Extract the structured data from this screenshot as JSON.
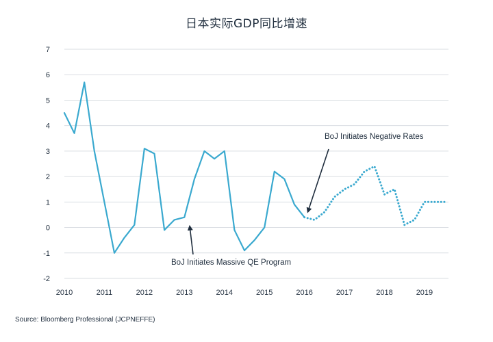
{
  "chart_data": {
    "type": "line",
    "title": "日本实际GDP同比增速",
    "source": "Source: Bloomberg Professional (JCPNEFFE)",
    "xlabel": "",
    "ylabel": "",
    "xlim": [
      2010,
      2019.6
    ],
    "ylim": [
      -2,
      7
    ],
    "yticks": [
      -2,
      -1,
      0,
      1,
      2,
      3,
      4,
      5,
      6,
      7
    ],
    "xticks": [
      2010,
      2011,
      2012,
      2013,
      2014,
      2015,
      2016,
      2017,
      2018,
      2019
    ],
    "grid": true,
    "line_color": "#3aa9cf",
    "series": [
      {
        "style": "solid",
        "x": [
          2010.0,
          2010.25,
          2010.5,
          2010.75,
          2011.0,
          2011.25,
          2011.5,
          2011.75,
          2012.0,
          2012.25,
          2012.5,
          2012.75,
          2013.0,
          2013.25,
          2013.5,
          2013.75,
          2014.0,
          2014.25,
          2014.5,
          2014.75,
          2015.0,
          2015.25,
          2015.5,
          2015.75,
          2016.0
        ],
        "y": [
          4.5,
          3.7,
          5.7,
          3.0,
          1.0,
          -1.0,
          -0.4,
          0.1,
          3.1,
          2.9,
          -0.1,
          0.3,
          0.4,
          1.9,
          3.0,
          2.7,
          3.0,
          -0.1,
          -0.9,
          -0.5,
          0.0,
          2.2,
          1.9,
          0.9,
          0.4
        ]
      },
      {
        "style": "dotted",
        "x": [
          2016.0,
          2016.25,
          2016.5,
          2016.75,
          2017.0,
          2017.25,
          2017.5,
          2017.75,
          2018.0,
          2018.25,
          2018.5,
          2018.75,
          2019.0,
          2019.25,
          2019.5
        ],
        "y": [
          0.4,
          0.3,
          0.6,
          1.2,
          1.5,
          1.7,
          2.2,
          2.4,
          1.3,
          1.5,
          0.1,
          0.3,
          1.0,
          1.0,
          1.0
        ]
      }
    ],
    "annotations": [
      {
        "text": "BoJ Initiates Negative Rates",
        "x": 2016.0,
        "y": 0.4
      },
      {
        "text": "BoJ Initiates Massive QE Program",
        "x": 2013.15,
        "y": 0.1
      }
    ]
  }
}
